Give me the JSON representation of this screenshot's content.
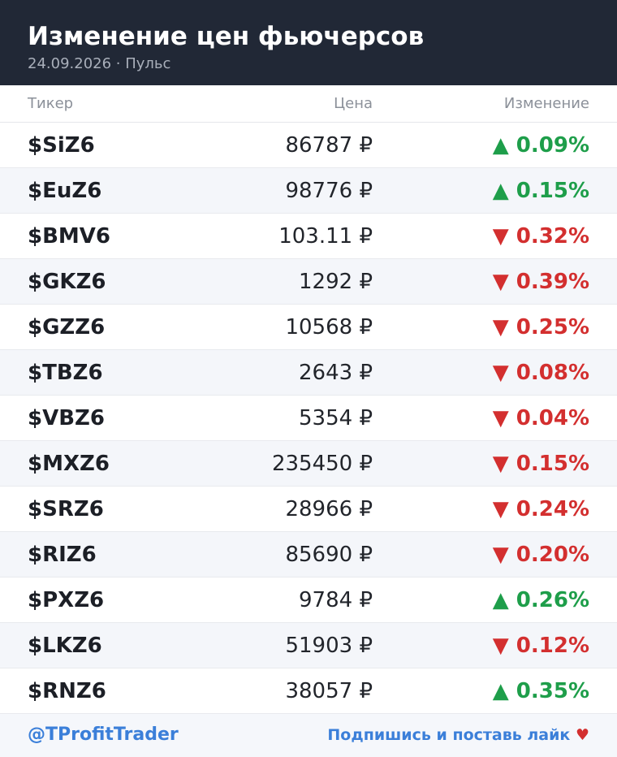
{
  "header": {
    "title": "Изменение цен фьючерсов",
    "subtitle": "24.09.2026 · Пульс"
  },
  "table": {
    "columns": [
      "Тикер",
      "Цена",
      "Изменение"
    ],
    "rows": [
      [
        "$SiZ6",
        "86787 ₽",
        "▲ 0.09%"
      ],
      [
        "$EuZ6",
        "98776 ₽",
        "▲ 0.15%"
      ],
      [
        "$BMV6",
        "103.11 ₽",
        "▼ 0.32%"
      ],
      [
        "$GKZ6",
        "1292 ₽",
        "▼ 0.39%"
      ],
      [
        "$GZZ6",
        "10568 ₽",
        "▼ 0.25%"
      ],
      [
        "$TBZ6",
        "2643 ₽",
        "▼ 0.08%"
      ],
      [
        "$VBZ6",
        "5354 ₽",
        "▼ 0.04%"
      ],
      [
        "$MXZ6",
        "235450 ₽",
        "▼ 0.15%"
      ],
      [
        "$SRZ6",
        "28966 ₽",
        "▼ 0.24%"
      ],
      [
        "$RIZ6",
        "85690 ₽",
        "▼ 0.20%"
      ],
      [
        "$PXZ6",
        "9784 ₽",
        "▲ 0.26%"
      ],
      [
        "$LKZ6",
        "51903 ₽",
        "▼ 0.12%"
      ],
      [
        "$RNZ6",
        "38057 ₽",
        "▲ 0.35%"
      ]
    ]
  },
  "footer": {
    "handle": "@TProfitTrader",
    "cta": "Подпишись и поставь лайк",
    "heart": "♥"
  }
}
